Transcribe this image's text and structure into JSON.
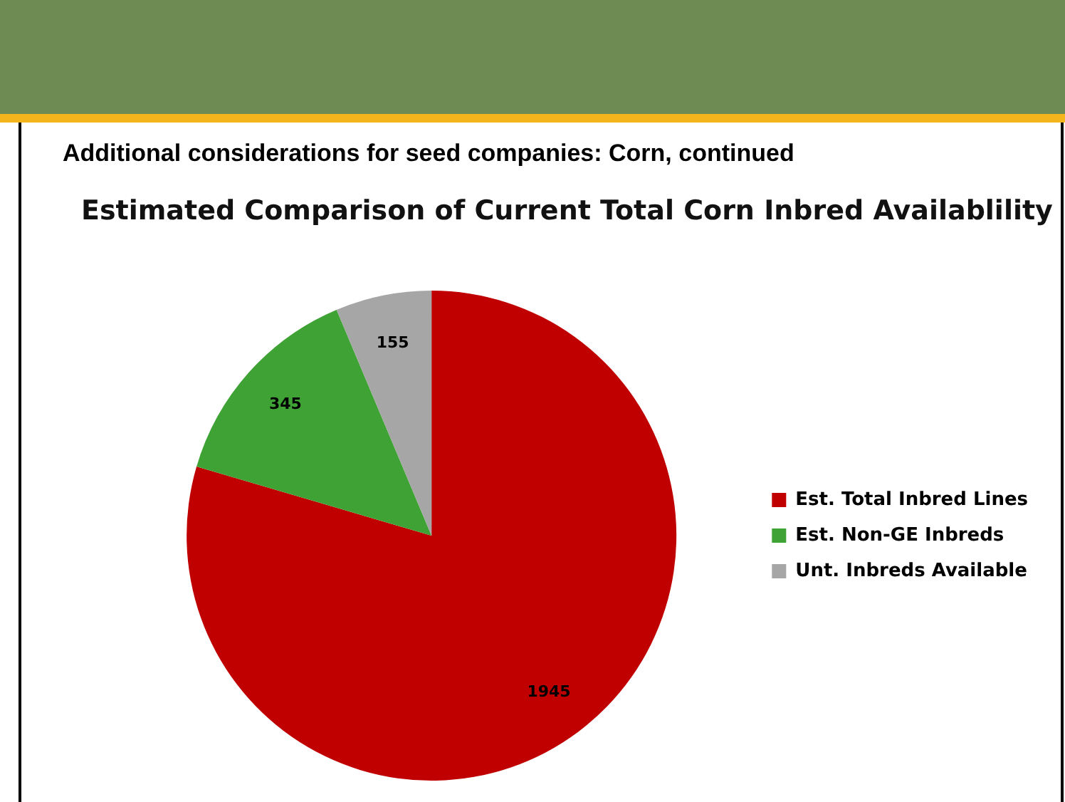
{
  "chart_data": {
    "type": "pie",
    "subtitle": "Additional considerations for seed companies: Corn, continued",
    "title": "Estimated Comparison of Current Total Corn Inbred Availablility",
    "categories": [
      "Est. Total Inbred Lines",
      "Est. Non-GE Inbreds",
      "Unt. Inbreds Available"
    ],
    "values": [
      1945,
      345,
      155
    ],
    "colors": [
      "#c00000",
      "#3ea234",
      "#a6a6a6"
    ],
    "data_labels": true,
    "legend": "right"
  }
}
